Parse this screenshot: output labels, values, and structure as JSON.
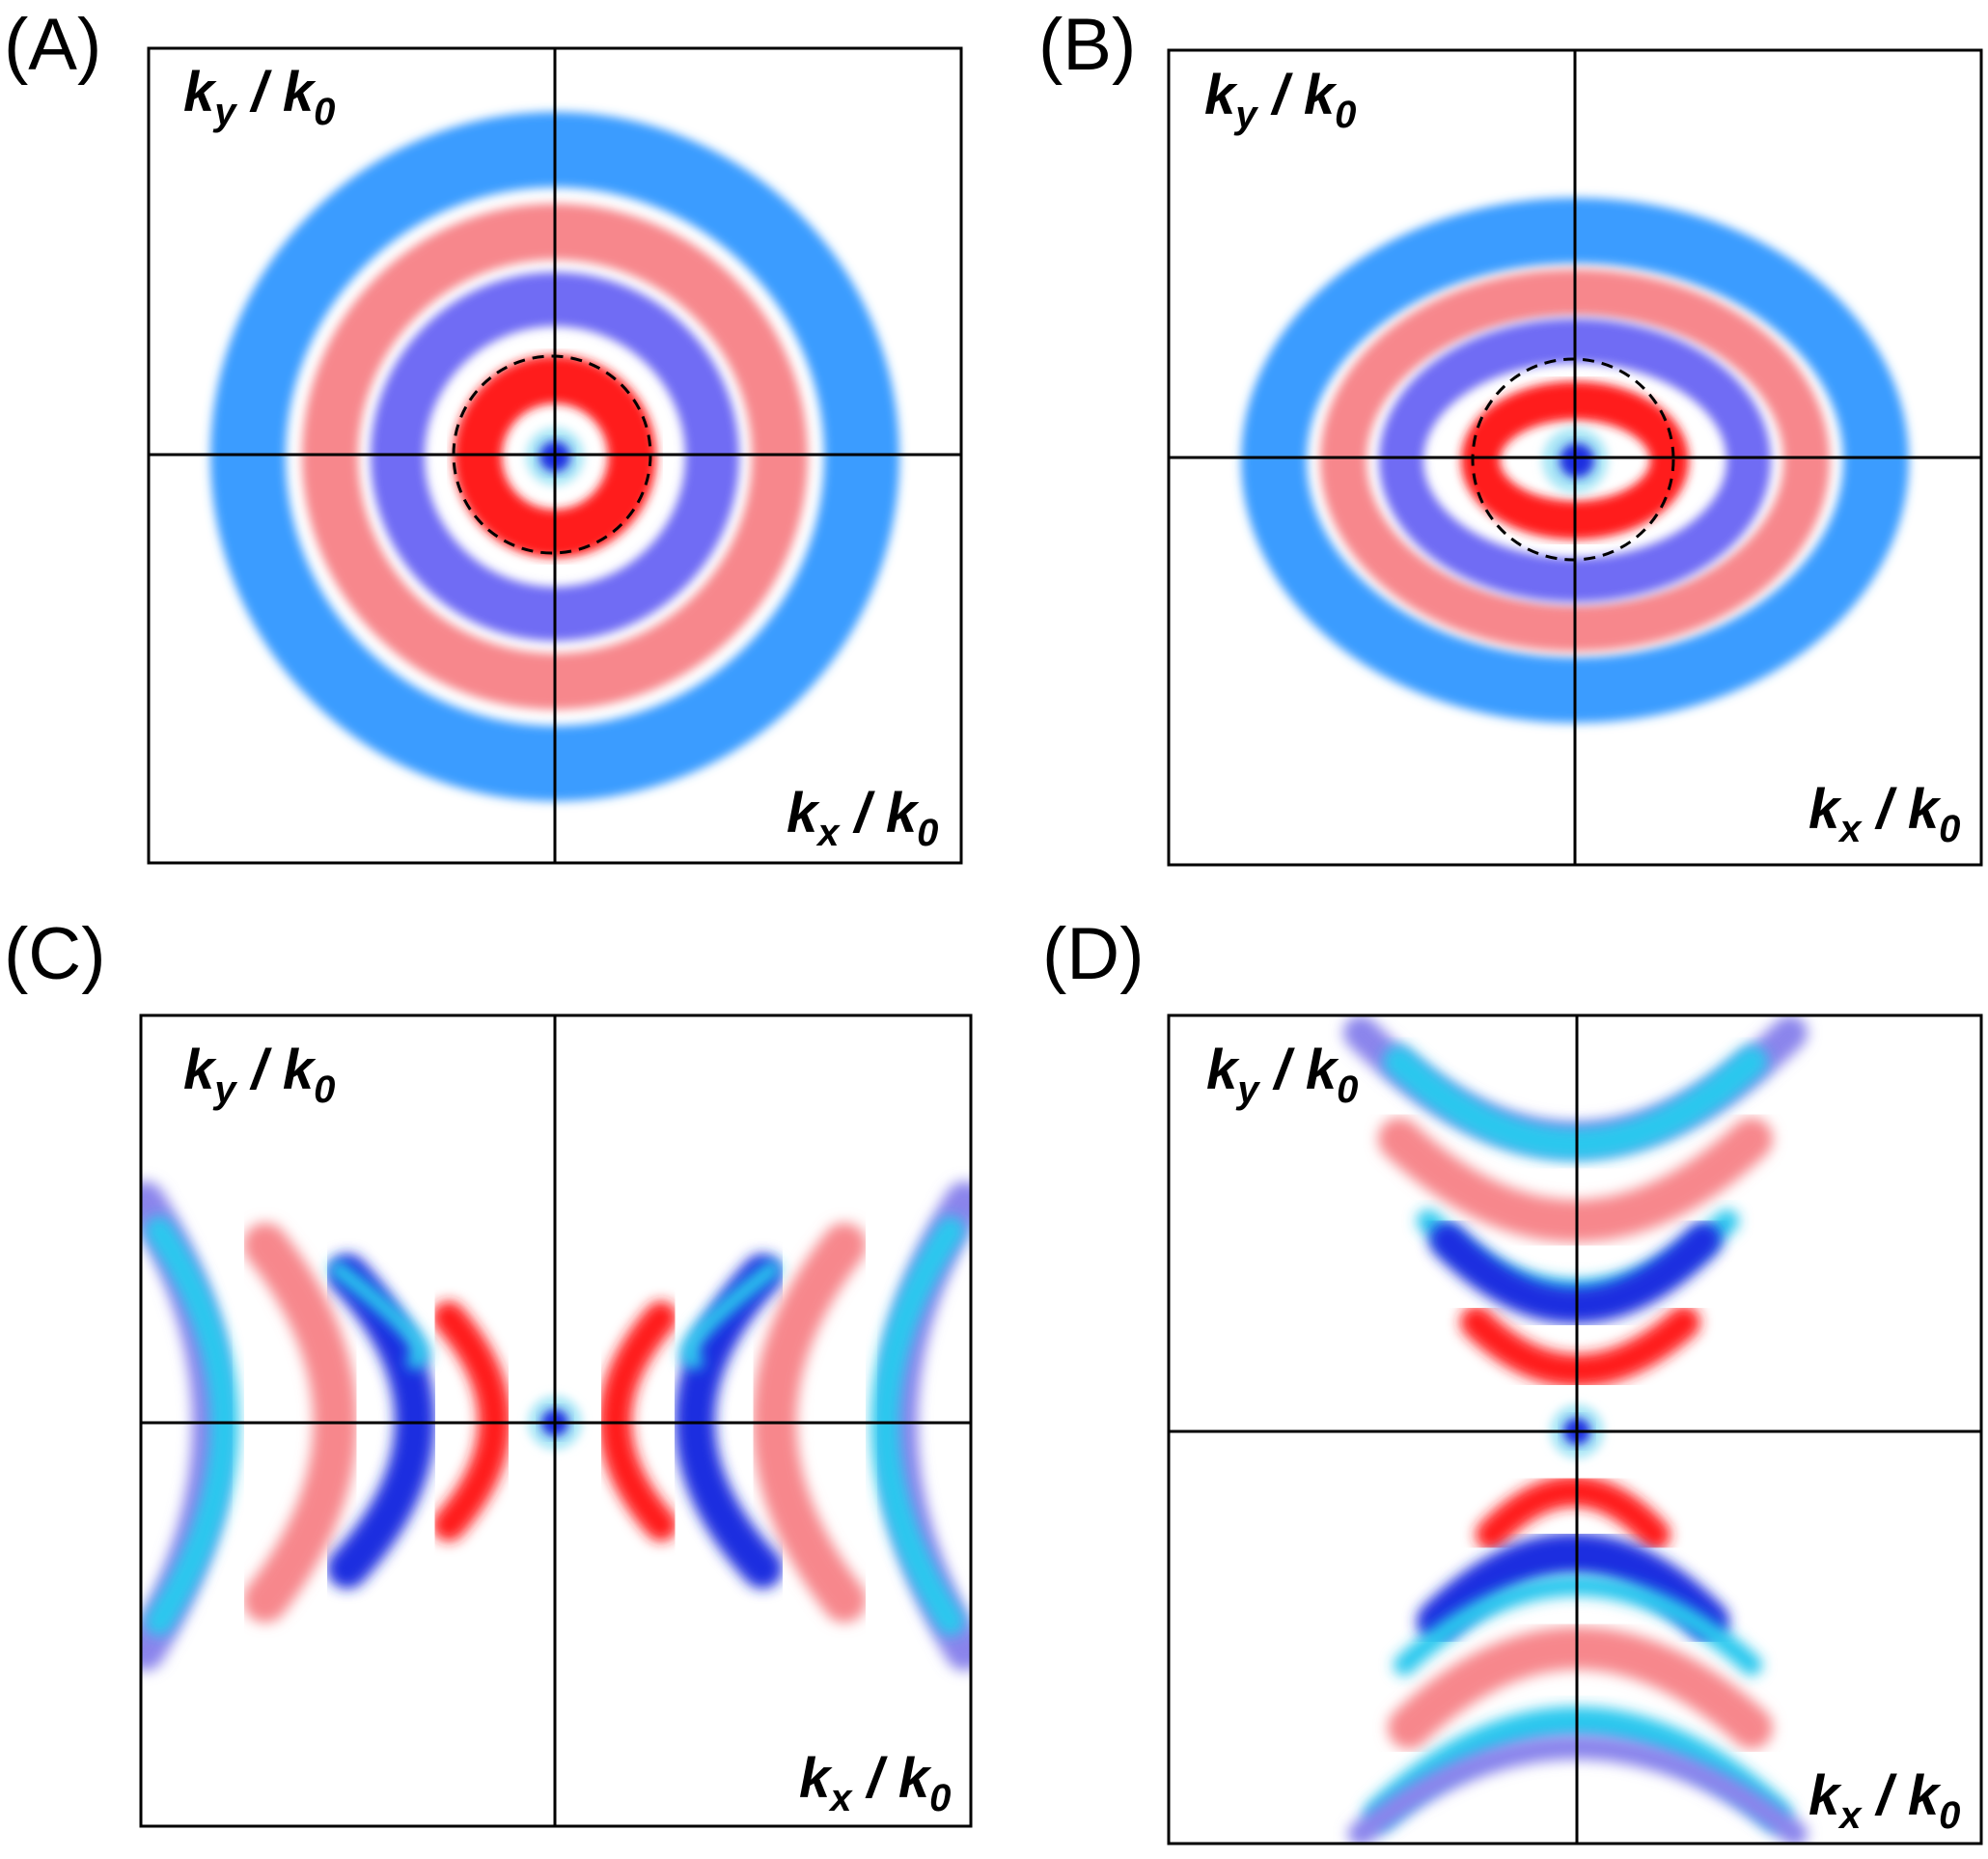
{
  "panels": [
    {
      "letter": "(A)",
      "ky_main": "k",
      "ky_sub": "y",
      "ky_div": " / ",
      "ky_k": "k",
      "ky_ksub": "0",
      "kx_main": "k",
      "kx_sub": "x",
      "kx_div": " / ",
      "kx_k": "k",
      "kx_ksub": "0",
      "pattern": "circular-rings"
    },
    {
      "letter": "(B)",
      "ky_main": "k",
      "ky_sub": "y",
      "ky_div": " / ",
      "ky_k": "k",
      "ky_ksub": "0",
      "kx_main": "k",
      "kx_sub": "x",
      "kx_div": " / ",
      "kx_k": "k",
      "kx_ksub": "0",
      "pattern": "elliptical-rings"
    },
    {
      "letter": "(C)",
      "ky_main": "k",
      "ky_sub": "y",
      "ky_div": " / ",
      "ky_k": "k",
      "ky_ksub": "0",
      "kx_main": "k",
      "kx_sub": "x",
      "kx_div": " / ",
      "kx_k": "k",
      "kx_ksub": "0",
      "pattern": "horizontal-hyperbolic-bands"
    },
    {
      "letter": "(D)",
      "ky_main": "k",
      "ky_sub": "y",
      "ky_div": " / ",
      "ky_k": "k",
      "ky_ksub": "0",
      "kx_main": "k",
      "kx_sub": "x",
      "kx_div": " / ",
      "kx_k": "k",
      "kx_ksub": "0",
      "pattern": "vertical-hyperbolic-bands"
    }
  ],
  "colors": {
    "outer_blue": "#3a9cff",
    "light_red": "#f7878c",
    "violet": "#6f6cf4",
    "red": "#ff1a1a",
    "deep_blue": "#1a2ee0",
    "cyan": "#29c8ee",
    "center_glow": "#a8e6f6",
    "lavender": "#8a84ec"
  }
}
